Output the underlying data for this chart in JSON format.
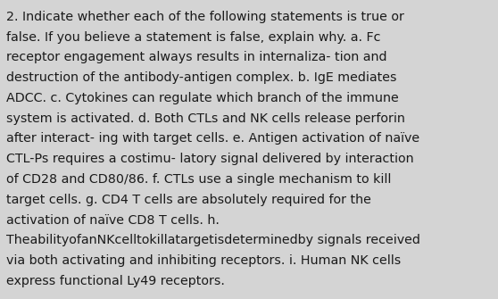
{
  "background_color": "#d4d4d4",
  "text_color": "#1a1a1a",
  "font_size": 10.3,
  "font_family": "DejaVu Sans",
  "fig_width": 5.58,
  "fig_height": 3.35,
  "dpi": 100,
  "lines": [
    "2. Indicate whether each of the following statements is true or",
    "false. If you believe a statement is false, explain why. a. Fc",
    "receptor engagement always results in internaliza- tion and",
    "destruction of the antibody-antigen complex. b. IgE mediates",
    "ADCC. c. Cytokines can regulate which branch of the immune",
    "system is activated. d. Both CTLs and NK cells release perforin",
    "after interact- ing with target cells. e. Antigen activation of naïve",
    "CTL-Ps requires a costimu- latory signal delivered by interaction",
    "of CD28 and CD80/86. f. CTLs use a single mechanism to kill",
    "target cells. g. CD4 T cells are absolutely required for the",
    "activation of naïve CD8 T cells. h.",
    "TheabilityofanNKcelltokillatargetisdeterminedby signals received",
    "via both activating and inhibiting receptors. i. Human NK cells",
    "express functional Ly49 receptors."
  ]
}
